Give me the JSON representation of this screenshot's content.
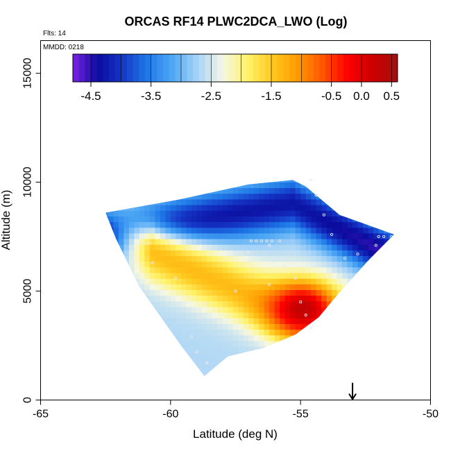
{
  "chart_data": {
    "type": "heatmap",
    "title": "ORCAS RF14 PLWC2DCA_LWO (Log)",
    "annotations": {
      "flights": "Flts: 14",
      "date": "MMDD: 0218"
    },
    "xlabel": "Latitude (deg N)",
    "ylabel": "Altitude (m)",
    "xlim": [
      -65,
      -50
    ],
    "ylim": [
      0,
      16500
    ],
    "x_ticks": [
      -65,
      -60,
      -55,
      -50
    ],
    "x_tick_labels": [
      "-65",
      "-60",
      "-55",
      "-50"
    ],
    "y_ticks": [
      0,
      5000,
      10000,
      15000
    ],
    "y_tick_labels": [
      "0",
      "5000",
      "10000",
      "15000"
    ],
    "grid": false,
    "colorbar": {
      "placement": "top-inside",
      "range": [
        -4.8,
        0.6
      ],
      "ticks": [
        -4.5,
        -3.5,
        -2.5,
        -1.5,
        -0.5,
        0.0,
        0.5
      ],
      "tick_labels": [
        "-4.5",
        "-3.5",
        "-2.5",
        "-1.5",
        "-0.5",
        "0.0",
        "0.5"
      ],
      "colors": [
        "#7b22e6",
        "#0b0b9e",
        "#1538c8",
        "#1f7ae8",
        "#4fa8f4",
        "#a8d4f8",
        "#f5f7e4",
        "#fff36a",
        "#ffc81e",
        "#ff9a00",
        "#ff5500",
        "#ff0000",
        "#cc0000",
        "#a80c0c"
      ]
    },
    "domain_polygon": [
      [
        -62.5,
        8600
      ],
      [
        -59.7,
        9200
      ],
      [
        -57.0,
        9900
      ],
      [
        -55.3,
        10100
      ],
      [
        -54.8,
        9800
      ],
      [
        -53.5,
        8500
      ],
      [
        -51.4,
        7600
      ],
      [
        -52.4,
        6400
      ],
      [
        -53.6,
        4800
      ],
      [
        -54.3,
        3800
      ],
      [
        -55.2,
        3000
      ],
      [
        -56.4,
        2400
      ],
      [
        -57.8,
        2000
      ],
      [
        -58.7,
        1100
      ],
      [
        -59.6,
        2500
      ],
      [
        -61.2,
        5200
      ],
      [
        -62.1,
        7400
      ]
    ],
    "field_features": {
      "background_level": -2.6,
      "upper_band": {
        "level": -4.3,
        "top_lat_alt": [
          [
            -62.5,
            8600
          ],
          [
            -55.3,
            10100
          ],
          [
            -51.4,
            7600
          ]
        ],
        "thickness_m": 2400
      },
      "core": {
        "lat": -54.9,
        "alt": 4200,
        "level": 0.3
      },
      "warm_sheet_slope": "rises from -54.5 at 3500 m toward -61.5 at 7200 m"
    },
    "sample_points": [
      [
        -54.6,
        10100
      ],
      [
        -54.4,
        9400
      ],
      [
        -54.1,
        8500
      ],
      [
        -53.8,
        7600
      ],
      [
        -52.0,
        7500
      ],
      [
        -51.8,
        7500
      ],
      [
        -51.5,
        7500
      ],
      [
        -52.1,
        7100
      ],
      [
        -52.8,
        6700
      ],
      [
        -53.3,
        6500
      ],
      [
        -55.8,
        7300
      ],
      [
        -56.1,
        7300
      ],
      [
        -56.3,
        7300
      ],
      [
        -56.5,
        7300
      ],
      [
        -56.7,
        7300
      ],
      [
        -56.9,
        7300
      ],
      [
        -56.2,
        7100
      ],
      [
        -57.0,
        6800
      ],
      [
        -55.7,
        6500
      ],
      [
        -55.6,
        6100
      ],
      [
        -55.2,
        5600
      ],
      [
        -56.2,
        5300
      ],
      [
        -57.5,
        5000
      ],
      [
        -58.6,
        4400
      ],
      [
        -58.9,
        3700
      ],
      [
        -59.2,
        2900
      ],
      [
        -59.0,
        2200
      ],
      [
        -58.6,
        1700
      ],
      [
        -55.0,
        4500
      ],
      [
        -54.8,
        3900
      ],
      [
        -54.6,
        3300
      ],
      [
        -60.8,
        7200
      ],
      [
        -61.0,
        7200
      ],
      [
        -60.7,
        6300
      ],
      [
        -59.8,
        5600
      ]
    ],
    "marker": {
      "type": "arrow-down",
      "x": -53.0,
      "y_top": 600,
      "y_bottom": 0
    }
  }
}
